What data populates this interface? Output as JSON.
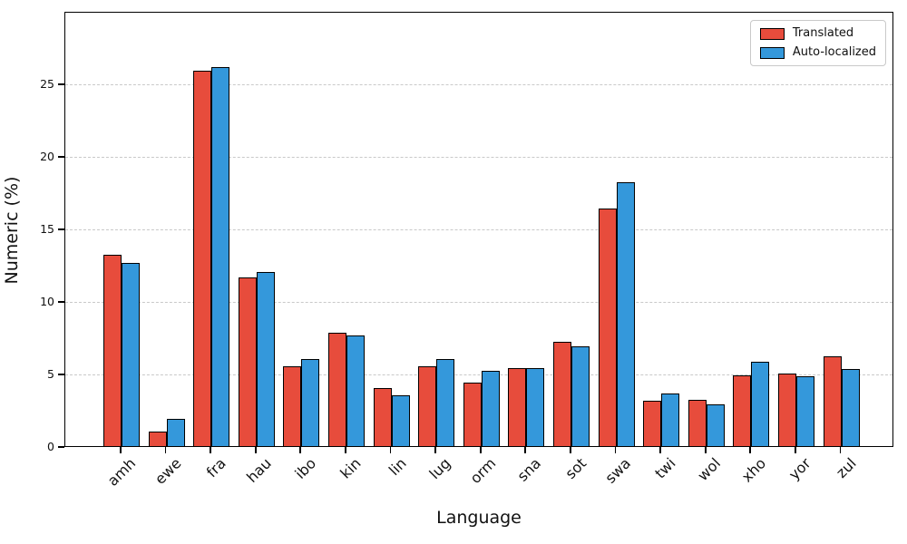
{
  "chart_data": {
    "type": "bar",
    "title": "",
    "xlabel": "Language",
    "ylabel": "Numeric (%)",
    "categories": [
      "amh",
      "ewe",
      "fra",
      "hau",
      "ibo",
      "kin",
      "lin",
      "lug",
      "orm",
      "sna",
      "sot",
      "swa",
      "twi",
      "wol",
      "xho",
      "yor",
      "zul"
    ],
    "series": [
      {
        "name": "Translated",
        "color": "#e74c3c",
        "values": [
          13.2,
          1.0,
          25.9,
          11.6,
          5.5,
          7.8,
          4.0,
          5.5,
          4.4,
          5.4,
          7.2,
          16.4,
          3.1,
          3.2,
          4.9,
          5.0,
          6.2
        ]
      },
      {
        "name": "Auto-localized",
        "color": "#3498db",
        "values": [
          12.6,
          1.9,
          26.1,
          12.0,
          6.0,
          7.6,
          3.5,
          6.0,
          5.2,
          5.4,
          6.9,
          18.2,
          3.6,
          2.9,
          5.8,
          4.8,
          5.3
        ]
      }
    ],
    "ylim": [
      0,
      30
    ],
    "yticks": [
      0,
      5,
      10,
      15,
      20,
      25
    ],
    "grid": "horizontal-dashed",
    "grid_color": "#c9c9c9",
    "bar_edge_color": "#000000",
    "legend_position": "upper-right"
  }
}
